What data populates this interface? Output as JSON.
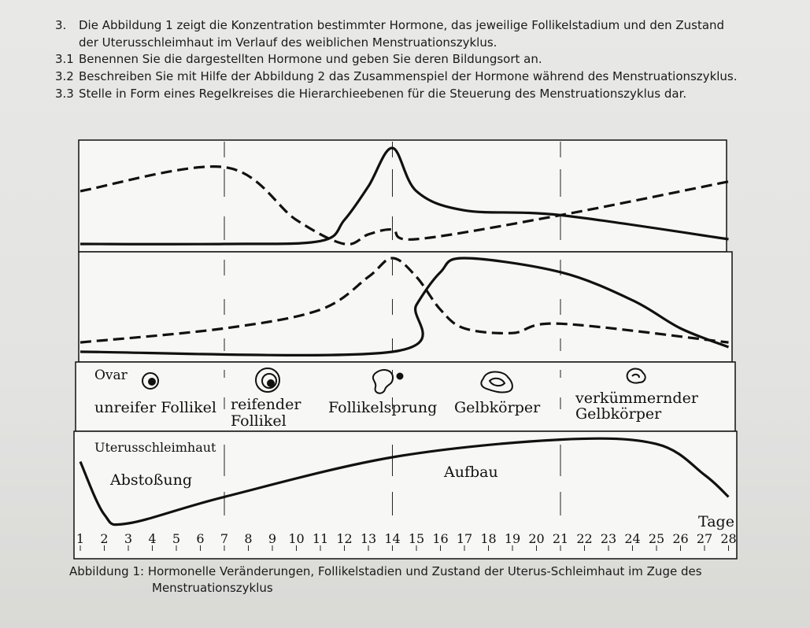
{
  "questions": [
    {
      "num": "3.",
      "text": "Die Abbildung 1 zeigt die Konzentration bestimmter Hormone, das jeweilige Follikelstadium und den Zustand",
      "cont": "der Uterusschleimhaut im Verlauf des weiblichen Menstruationszyklus."
    },
    {
      "num": "3.1",
      "text": "Benennen Sie die dargestellten Hormone und geben Sie deren Bildungsort an."
    },
    {
      "num": "3.2",
      "text": "Beschreiben Sie mit Hilfe der Abbildung 2 das Zusammenspiel der Hormone während des Menstruationszyklus."
    },
    {
      "num": "3.3",
      "text": "Stelle in Form eines Regelkreises die Hierarchieebenen für die Steuerung des Menstruationszyklus dar."
    }
  ],
  "figure": {
    "ovar_label": "Ovar",
    "stages": {
      "unreif": "unreifer Follikel",
      "reif1": "reifender",
      "reif2": "Follikel",
      "sprung": "Follikelsprung",
      "gelb": "Gelbkörper",
      "verk1": "verkümmernder",
      "verk2": "Gelbkörper"
    },
    "uterus_label": "Uterusschleimhaut",
    "abstossung": "Abstoßung",
    "aufbau": "Aufbau",
    "tage": "Tage",
    "days": [
      "1",
      "2",
      "3",
      "4",
      "5",
      "6",
      "7",
      "8",
      "9",
      "10",
      "11",
      "12",
      "13",
      "14",
      "15",
      "16",
      "17",
      "18",
      "19",
      "20",
      "21",
      "22",
      "23",
      "24",
      "25",
      "26",
      "27",
      "28"
    ]
  },
  "chart_data": {
    "type": "line",
    "x_unit": "Tage",
    "panels": [
      {
        "panel": "hormones-top",
        "series": [
          {
            "style": "dashed",
            "x": [
              1,
              7,
              10,
              12,
              13,
              14,
              15,
              21,
              28
            ],
            "y": [
              0.55,
              0.8,
              0.25,
              0.0,
              0.1,
              0.15,
              0.05,
              0.3,
              0.65
            ]
          },
          {
            "style": "solid",
            "x": [
              1,
              7,
              11,
              12,
              13,
              14,
              15,
              17,
              21,
              28
            ],
            "y": [
              0.0,
              0.0,
              0.03,
              0.25,
              0.6,
              1.0,
              0.55,
              0.35,
              0.3,
              0.05
            ]
          }
        ]
      },
      {
        "panel": "hormones-middle",
        "series": [
          {
            "style": "dashed",
            "x": [
              1,
              7,
              11,
              13,
              14,
              15,
              16,
              17,
              19,
              21,
              28
            ],
            "y": [
              0.1,
              0.25,
              0.45,
              0.8,
              1.0,
              0.8,
              0.45,
              0.25,
              0.2,
              0.3,
              0.1
            ]
          },
          {
            "style": "solid",
            "x": [
              1,
              14,
              15,
              16,
              17,
              21,
              24,
              26,
              28
            ],
            "y": [
              0.0,
              0.0,
              0.5,
              0.85,
              1.0,
              0.85,
              0.55,
              0.25,
              0.05
            ]
          }
        ]
      },
      {
        "panel": "uterus",
        "series": [
          {
            "style": "solid",
            "x": [
              1,
              2,
              3,
              7,
              14,
              21,
              25,
              27,
              28
            ],
            "y": [
              0.7,
              0.1,
              0.0,
              0.3,
              0.75,
              0.95,
              0.9,
              0.55,
              0.3
            ]
          }
        ]
      }
    ]
  },
  "caption": {
    "line1": "Abbildung 1: Hormonelle Veränderungen, Follikelstadien und Zustand der Uterus-Schleimhaut im Zuge des",
    "line2": "Menstruationszyklus"
  }
}
